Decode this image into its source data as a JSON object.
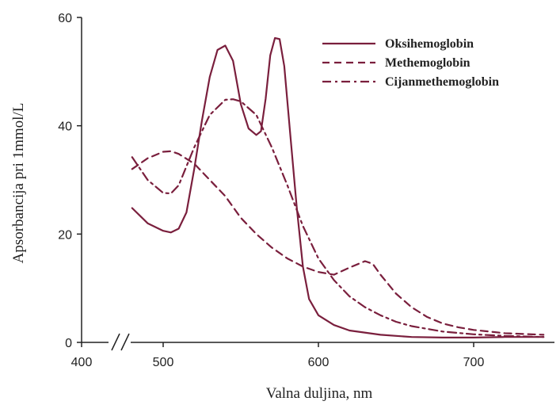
{
  "chart_data": {
    "type": "line",
    "xlabel": "Valna duljina, nm",
    "ylabel": "Apsorbancija pri 1mmol/L",
    "x_ticks": [
      400,
      500,
      600,
      700
    ],
    "y_ticks": [
      0,
      20,
      40,
      60
    ],
    "x_axis_break": [
      400,
      480
    ],
    "xlim": [
      400,
      745
    ],
    "ylim": [
      0,
      60
    ],
    "grid": false,
    "legend_position": "top-right",
    "line_color": "#7a1f3d",
    "series": [
      {
        "name": "Oksihemoglobin",
        "style": "solid",
        "points": [
          [
            480,
            24.8
          ],
          [
            490,
            22.0
          ],
          [
            500,
            20.6
          ],
          [
            505,
            20.3
          ],
          [
            510,
            21.0
          ],
          [
            515,
            24.0
          ],
          [
            520,
            32.0
          ],
          [
            525,
            41.0
          ],
          [
            530,
            49.0
          ],
          [
            535,
            54.0
          ],
          [
            540,
            54.8
          ],
          [
            545,
            52.0
          ],
          [
            550,
            44.0
          ],
          [
            555,
            39.5
          ],
          [
            560,
            38.3
          ],
          [
            563,
            39.0
          ],
          [
            566,
            45.0
          ],
          [
            569,
            53.0
          ],
          [
            572,
            56.2
          ],
          [
            575,
            56.0
          ],
          [
            578,
            51.0
          ],
          [
            582,
            38.0
          ],
          [
            586,
            25.0
          ],
          [
            590,
            14.0
          ],
          [
            594,
            8.0
          ],
          [
            600,
            5.0
          ],
          [
            610,
            3.2
          ],
          [
            620,
            2.2
          ],
          [
            640,
            1.4
          ],
          [
            660,
            1.0
          ],
          [
            680,
            0.9
          ],
          [
            700,
            0.9
          ],
          [
            720,
            1.0
          ],
          [
            745,
            1.0
          ]
        ]
      },
      {
        "name": "Methemoglobin",
        "style": "dashed",
        "points": [
          [
            480,
            32.0
          ],
          [
            490,
            34.0
          ],
          [
            500,
            35.2
          ],
          [
            505,
            35.3
          ],
          [
            510,
            34.8
          ],
          [
            520,
            33.0
          ],
          [
            530,
            30.0
          ],
          [
            540,
            27.0
          ],
          [
            550,
            23.0
          ],
          [
            560,
            20.0
          ],
          [
            570,
            17.5
          ],
          [
            580,
            15.5
          ],
          [
            590,
            14.0
          ],
          [
            600,
            13.0
          ],
          [
            610,
            12.5
          ],
          [
            620,
            13.8
          ],
          [
            630,
            15.0
          ],
          [
            635,
            14.5
          ],
          [
            640,
            12.5
          ],
          [
            650,
            9.0
          ],
          [
            660,
            6.5
          ],
          [
            670,
            4.7
          ],
          [
            680,
            3.5
          ],
          [
            690,
            2.8
          ],
          [
            700,
            2.3
          ],
          [
            720,
            1.7
          ],
          [
            745,
            1.4
          ]
        ]
      },
      {
        "name": "Cijanmethemoglobin",
        "style": "dashdot",
        "points": [
          [
            480,
            34.2
          ],
          [
            490,
            30.0
          ],
          [
            500,
            27.6
          ],
          [
            505,
            27.5
          ],
          [
            510,
            29.0
          ],
          [
            520,
            36.0
          ],
          [
            530,
            42.0
          ],
          [
            540,
            44.8
          ],
          [
            545,
            44.9
          ],
          [
            550,
            44.5
          ],
          [
            560,
            42.0
          ],
          [
            570,
            36.0
          ],
          [
            580,
            29.0
          ],
          [
            590,
            21.5
          ],
          [
            600,
            15.5
          ],
          [
            610,
            11.5
          ],
          [
            620,
            8.5
          ],
          [
            630,
            6.5
          ],
          [
            640,
            5.0
          ],
          [
            650,
            3.8
          ],
          [
            660,
            3.0
          ],
          [
            680,
            2.0
          ],
          [
            700,
            1.5
          ],
          [
            720,
            1.2
          ],
          [
            745,
            1.0
          ]
        ]
      }
    ]
  }
}
